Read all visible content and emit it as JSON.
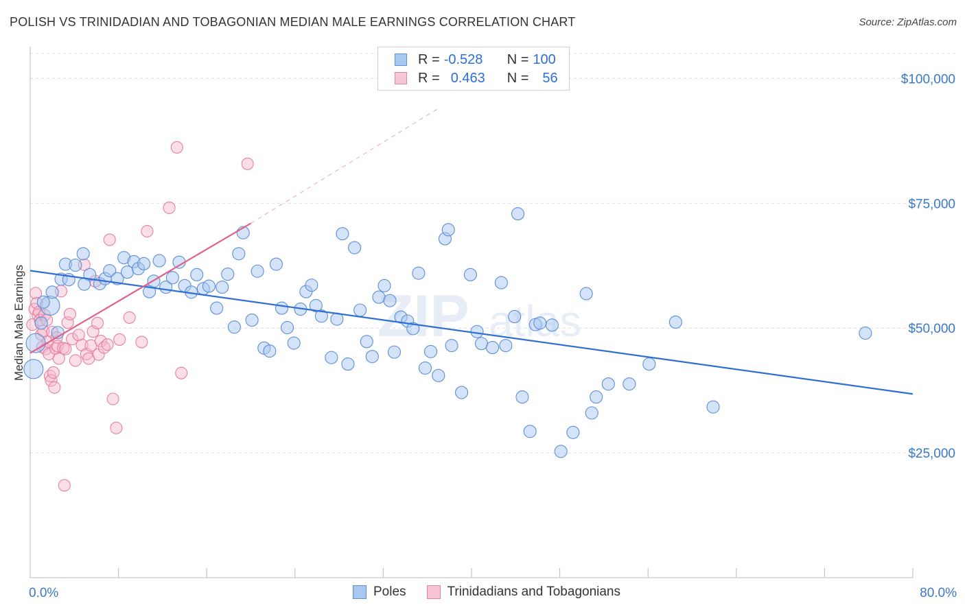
{
  "title": "POLISH VS TRINIDADIAN AND TOBAGONIAN MEDIAN MALE EARNINGS CORRELATION CHART",
  "source": "Source: ZipAtlas.com",
  "watermark": "ZIPatlas",
  "legend": {
    "rows": [
      {
        "r_label": "R =",
        "r_value": "-0.528",
        "n_label": "N =",
        "n_value": "100"
      },
      {
        "r_label": "R =",
        "r_value": "0.463",
        "n_label": "N =",
        "n_value": "56"
      }
    ]
  },
  "bottom_legend": {
    "series1": "Poles",
    "series2": "Trinidadians and Tobagonians"
  },
  "chart_data": {
    "type": "scatter",
    "title": "POLISH VS TRINIDADIAN AND TOBAGONIAN MEDIAN MALE EARNINGS CORRELATION CHART",
    "xlabel": "",
    "ylabel": "Median Male Earnings",
    "xlim": [
      0,
      80
    ],
    "ylim": [
      0,
      105000
    ],
    "x_tick_labels": [
      "0.0%",
      "80.0%"
    ],
    "y_ticks": [
      25000,
      50000,
      75000,
      100000
    ],
    "y_tick_labels": [
      "$25,000",
      "$50,000",
      "$75,000",
      "$100,000"
    ],
    "grid": true,
    "colors": {
      "poles_fill": "#a9c8f0",
      "poles_stroke": "#5b8fd6",
      "poles_line": "#2f6fd0",
      "tt_fill": "#f7b8cc",
      "tt_stroke": "#e67fa0",
      "tt_line": "#e0608a"
    },
    "series": [
      {
        "name": "Poles",
        "trend": {
          "x": [
            0,
            80
          ],
          "y": [
            61500,
            36800
          ]
        },
        "points": [
          [
            0.3,
            41800
          ],
          [
            0.5,
            47000
          ],
          [
            1.0,
            51000
          ],
          [
            1.8,
            54500
          ],
          [
            2.0,
            57200
          ],
          [
            2.8,
            59800
          ],
          [
            3.2,
            62800
          ],
          [
            3.5,
            59700
          ],
          [
            4.1,
            62600
          ],
          [
            4.8,
            64900
          ],
          [
            5.4,
            60700
          ],
          [
            6.3,
            58900
          ],
          [
            6.8,
            59900
          ],
          [
            7.2,
            61500
          ],
          [
            7.9,
            59900
          ],
          [
            8.5,
            64100
          ],
          [
            8.8,
            61200
          ],
          [
            9.4,
            63300
          ],
          [
            9.8,
            61900
          ],
          [
            10.3,
            62900
          ],
          [
            10.8,
            57300
          ],
          [
            11.2,
            59400
          ],
          [
            11.7,
            63500
          ],
          [
            12.3,
            58200
          ],
          [
            12.9,
            60100
          ],
          [
            13.5,
            63200
          ],
          [
            14.0,
            58500
          ],
          [
            14.6,
            57200
          ],
          [
            15.1,
            60700
          ],
          [
            15.7,
            57900
          ],
          [
            16.2,
            58400
          ],
          [
            16.9,
            54000
          ],
          [
            17.4,
            58200
          ],
          [
            17.9,
            60800
          ],
          [
            18.5,
            50200
          ],
          [
            18.9,
            64900
          ],
          [
            19.3,
            69100
          ],
          [
            20.1,
            51600
          ],
          [
            20.6,
            61400
          ],
          [
            21.2,
            46000
          ],
          [
            21.7,
            45400
          ],
          [
            22.3,
            62800
          ],
          [
            22.8,
            54000
          ],
          [
            23.3,
            50100
          ],
          [
            23.9,
            47000
          ],
          [
            24.5,
            53800
          ],
          [
            25.0,
            57300
          ],
          [
            25.5,
            58600
          ],
          [
            25.9,
            54500
          ],
          [
            26.4,
            52400
          ],
          [
            27.3,
            44100
          ],
          [
            27.8,
            51800
          ],
          [
            28.3,
            68900
          ],
          [
            28.8,
            42800
          ],
          [
            29.4,
            66100
          ],
          [
            29.9,
            53600
          ],
          [
            30.5,
            47300
          ],
          [
            31.0,
            44300
          ],
          [
            31.6,
            56200
          ],
          [
            32.1,
            58500
          ],
          [
            32.6,
            55500
          ],
          [
            33.0,
            45200
          ],
          [
            33.6,
            52200
          ],
          [
            34.2,
            51400
          ],
          [
            34.7,
            49900
          ],
          [
            35.2,
            61000
          ],
          [
            35.8,
            42000
          ],
          [
            36.3,
            45300
          ],
          [
            37.0,
            40500
          ],
          [
            37.6,
            67900
          ],
          [
            37.9,
            69700
          ],
          [
            38.2,
            46500
          ],
          [
            39.1,
            37100
          ],
          [
            39.9,
            60700
          ],
          [
            40.5,
            49300
          ],
          [
            40.9,
            46900
          ],
          [
            41.9,
            46100
          ],
          [
            42.7,
            59100
          ],
          [
            43.1,
            46500
          ],
          [
            43.9,
            52300
          ],
          [
            44.2,
            72900
          ],
          [
            44.6,
            36200
          ],
          [
            45.3,
            29300
          ],
          [
            45.8,
            50700
          ],
          [
            46.2,
            51000
          ],
          [
            47.3,
            50600
          ],
          [
            48.1,
            25300
          ],
          [
            49.2,
            29100
          ],
          [
            50.4,
            56900
          ],
          [
            50.9,
            33000
          ],
          [
            51.3,
            36200
          ],
          [
            52.4,
            38800
          ],
          [
            54.3,
            38800
          ],
          [
            56.1,
            42800
          ],
          [
            58.5,
            51200
          ],
          [
            61.9,
            34200
          ],
          [
            75.7,
            49000
          ],
          [
            1.2,
            55200
          ],
          [
            2.5,
            49100
          ],
          [
            4.9,
            58800
          ]
        ]
      },
      {
        "name": "Trinidadians and Tobagonians",
        "trend": {
          "x": [
            0,
            20
          ],
          "y": [
            45000,
            71000
          ]
        },
        "trend_dashed": {
          "x": [
            20,
            37
          ],
          "y": [
            71000,
            94000
          ]
        },
        "points": [
          [
            0.2,
            50700
          ],
          [
            0.4,
            53800
          ],
          [
            0.5,
            57000
          ],
          [
            0.6,
            55000
          ],
          [
            0.7,
            52600
          ],
          [
            0.8,
            53200
          ],
          [
            0.9,
            51600
          ],
          [
            1.0,
            48700
          ],
          [
            1.1,
            46200
          ],
          [
            1.2,
            49400
          ],
          [
            1.3,
            52600
          ],
          [
            1.4,
            45800
          ],
          [
            1.5,
            51600
          ],
          [
            1.6,
            47300
          ],
          [
            1.7,
            44800
          ],
          [
            1.8,
            40400
          ],
          [
            1.9,
            39500
          ],
          [
            2.0,
            49200
          ],
          [
            2.1,
            41100
          ],
          [
            2.2,
            38100
          ],
          [
            2.3,
            45900
          ],
          [
            2.4,
            48100
          ],
          [
            2.5,
            46400
          ],
          [
            2.6,
            43900
          ],
          [
            2.8,
            57400
          ],
          [
            3.0,
            46000
          ],
          [
            3.2,
            45800
          ],
          [
            3.4,
            51100
          ],
          [
            3.6,
            52800
          ],
          [
            3.8,
            47800
          ],
          [
            4.1,
            43500
          ],
          [
            4.4,
            48600
          ],
          [
            4.7,
            46600
          ],
          [
            4.9,
            62700
          ],
          [
            5.1,
            44800
          ],
          [
            5.3,
            43900
          ],
          [
            5.5,
            46500
          ],
          [
            5.7,
            49300
          ],
          [
            5.9,
            59400
          ],
          [
            6.1,
            51000
          ],
          [
            6.2,
            44700
          ],
          [
            6.4,
            47400
          ],
          [
            6.7,
            46100
          ],
          [
            7.0,
            46700
          ],
          [
            7.2,
            67700
          ],
          [
            7.5,
            35800
          ],
          [
            7.8,
            30000
          ],
          [
            8.1,
            47700
          ],
          [
            9.0,
            52100
          ],
          [
            10.1,
            47200
          ],
          [
            10.6,
            69400
          ],
          [
            12.6,
            74100
          ],
          [
            13.3,
            86200
          ],
          [
            13.7,
            41000
          ],
          [
            19.7,
            82900
          ],
          [
            3.1,
            18500
          ]
        ]
      }
    ]
  }
}
